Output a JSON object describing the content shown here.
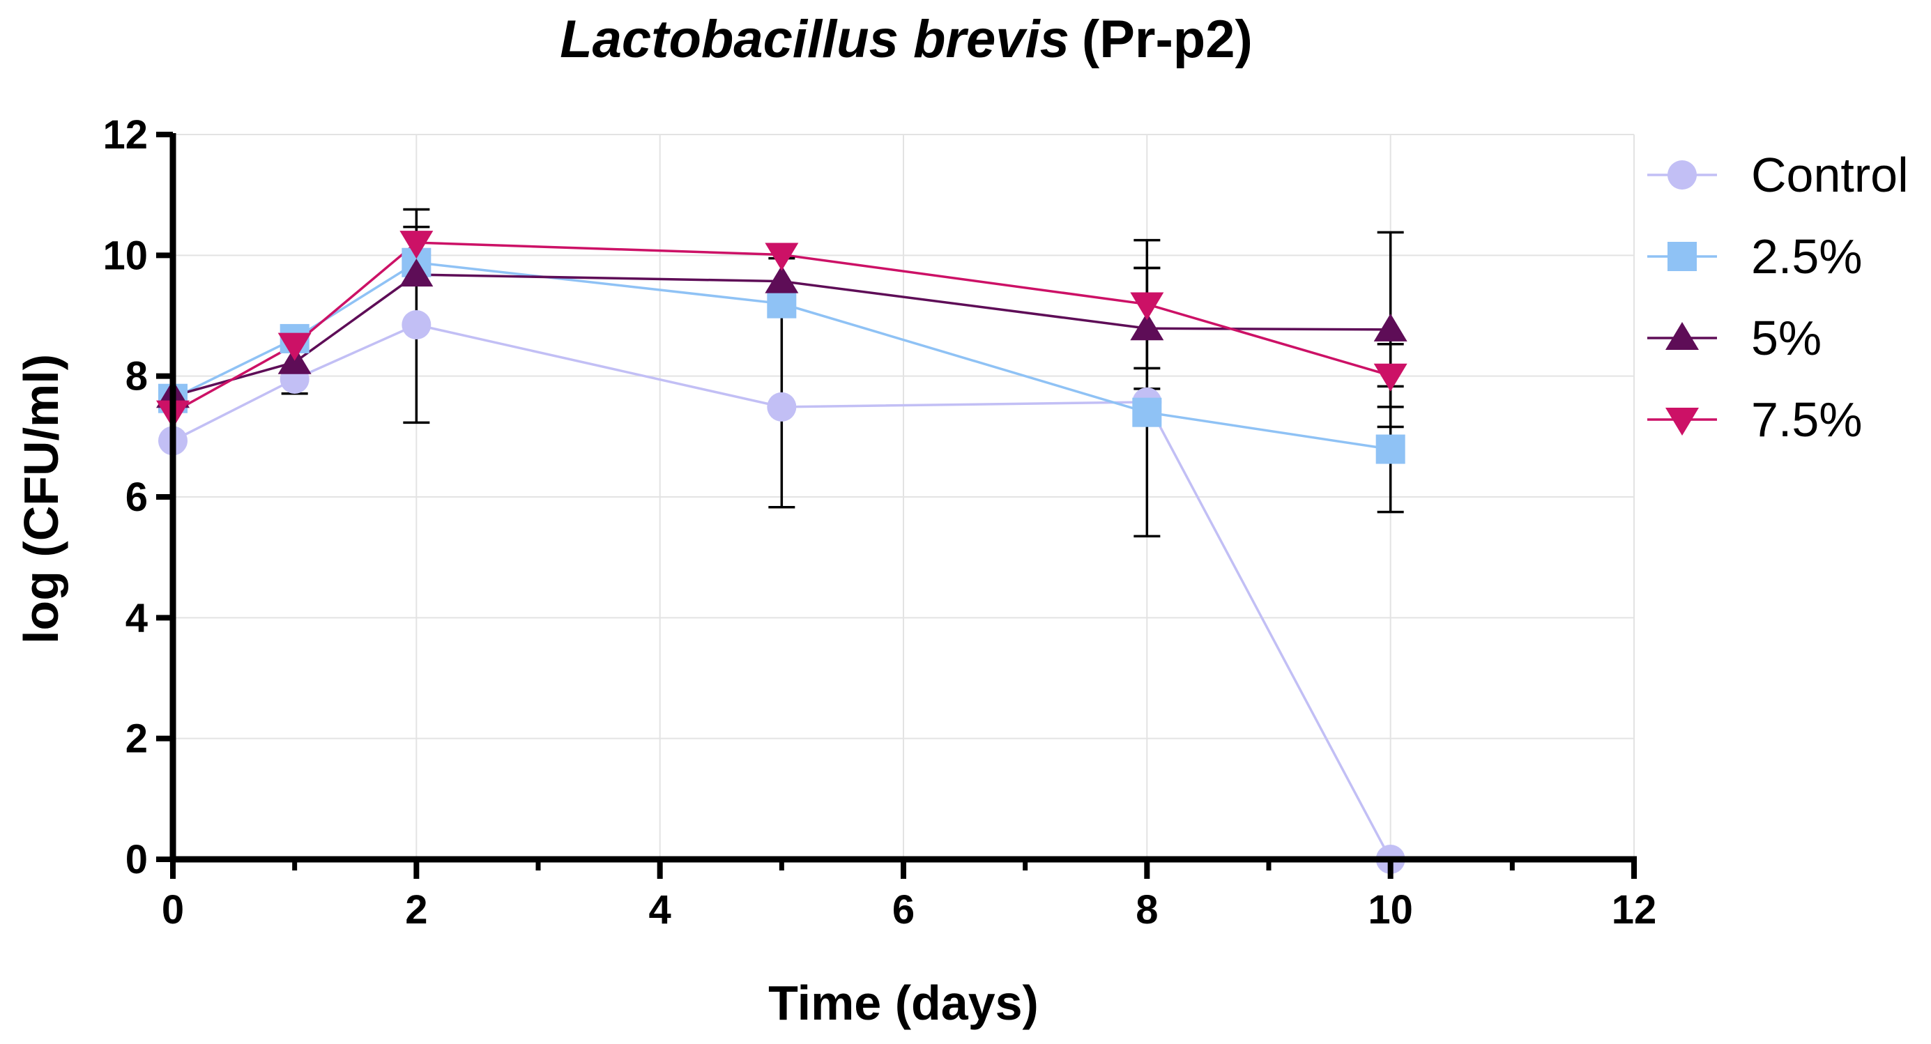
{
  "chart_data": {
    "type": "line",
    "title_italic": "Lactobacillus brevis",
    "title_rest": "(Pr-p2)",
    "xlabel": "Time (days)",
    "ylabel": "log (CFU/ml)",
    "xlim": [
      0,
      12
    ],
    "ylim": [
      0,
      12
    ],
    "xticks": [
      0,
      2,
      4,
      6,
      8,
      10,
      12
    ],
    "yticks": [
      0,
      2,
      4,
      6,
      8,
      10,
      12
    ],
    "x_minor_ticks": [
      1,
      3,
      5,
      7,
      9,
      11
    ],
    "grid": true,
    "legend_position": "right",
    "x": [
      0,
      1,
      2,
      5,
      8,
      10
    ],
    "series": [
      {
        "name": "Control",
        "color": "#c2bff5",
        "marker": "circle",
        "values": [
          6.93,
          7.95,
          8.85,
          7.49,
          7.57,
          0.0
        ],
        "errors": [
          0,
          0,
          0,
          1.66,
          0,
          0
        ]
      },
      {
        "name": "2.5%",
        "color": "#8fc2f5",
        "marker": "square",
        "values": [
          7.63,
          8.62,
          9.88,
          9.2,
          7.4,
          6.79
        ],
        "errors": [
          0,
          0,
          0,
          0,
          0,
          1.04
        ]
      },
      {
        "name": "5%",
        "color": "#5e0d57",
        "marker": "triangle-up",
        "values": [
          7.67,
          8.23,
          9.68,
          9.57,
          8.79,
          8.77
        ],
        "errors": [
          0,
          0.52,
          0,
          0.38,
          1.0,
          1.61
        ]
      },
      {
        "name": "7.5%",
        "color": "#cc1166",
        "marker": "triangle-down",
        "values": [
          7.4,
          8.52,
          10.21,
          10.01,
          9.19,
          8.01
        ],
        "errors": [
          0,
          0,
          0.55,
          0,
          1.06,
          0.52
        ]
      }
    ],
    "extra_error_bars": [
      {
        "x": 2,
        "center": 8.85,
        "err": 1.62
      },
      {
        "x": 8,
        "center": 7.57,
        "err": 2.22
      }
    ]
  }
}
